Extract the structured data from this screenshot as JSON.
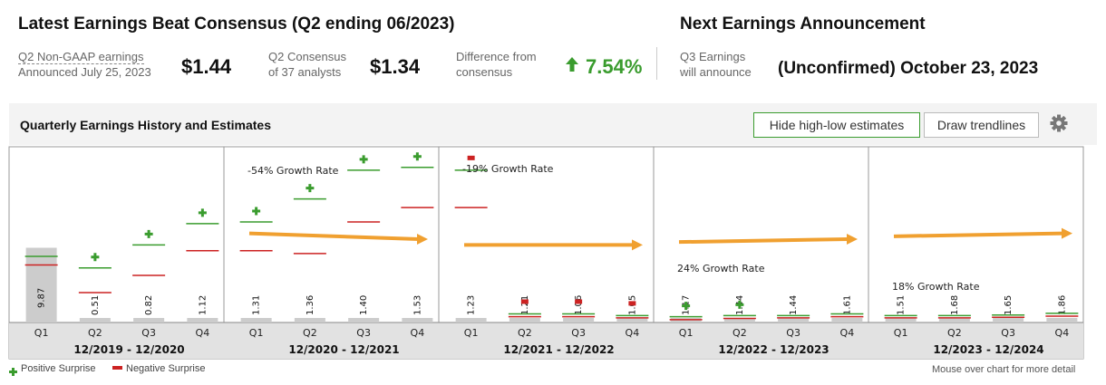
{
  "header": {
    "latest_title": "Latest Earnings Beat Consensus (Q2 ending 06/2023)",
    "next_title": "Next Earnings Announcement",
    "q2_label_line1": "Q2 Non-GAAP earnings",
    "q2_label_line2": "Announced July 25, 2023",
    "q2_value": "$1.44",
    "consensus_label_line1": "Q2 Consensus",
    "consensus_label_line2": "of 37 analysts",
    "consensus_value": "$1.34",
    "diff_label_line1": "Difference from",
    "diff_label_line2": "consensus",
    "diff_value": "7.54%",
    "q3_label_line1": "Q3 Earnings",
    "q3_label_line2": "will announce",
    "q3_date": "(Unconfirmed) October 23, 2023"
  },
  "panel": {
    "title": "Quarterly Earnings History and Estimates",
    "hide_button": "Hide high-low estimates",
    "trend_button": "Draw trendlines"
  },
  "legend": {
    "positive": "Positive Surprise",
    "negative": "Negative Surprise",
    "note": "Mouse over chart for more detail"
  },
  "colors": {
    "positive": "#3a9c2e",
    "negative": "#cc2222",
    "high_estimate": "#3a9c2e",
    "low_estimate": "#cc2222",
    "trend": "#f0a030",
    "bar": "#cccccc"
  },
  "chart_data": {
    "type": "bar",
    "periods": [
      {
        "label": "12/2019 - 12/2020",
        "growth_label": "",
        "quarters": [
          {
            "q": "Q1",
            "value": 9.87,
            "label": "9.87",
            "high": 1.15,
            "low": 1.0,
            "surprise": "none"
          },
          {
            "q": "Q2",
            "value": 0.51,
            "label": "0.51",
            "high": 0.95,
            "low": 0.52,
            "surprise": "positive"
          },
          {
            "q": "Q3",
            "value": 0.82,
            "label": "0.82",
            "high": 1.35,
            "low": 0.82,
            "surprise": "positive"
          },
          {
            "q": "Q4",
            "value": 1.12,
            "label": "1.12",
            "high": 1.72,
            "low": 1.25,
            "surprise": "positive"
          }
        ]
      },
      {
        "label": "12/2020 - 12/2021",
        "growth_label": "-54% Growth Rate",
        "trend": [
          1.55,
          1.45
        ],
        "quarters": [
          {
            "q": "Q1",
            "value": 1.31,
            "label": "1.31",
            "high": 1.75,
            "low": 1.25,
            "surprise": "positive"
          },
          {
            "q": "Q2",
            "value": 1.36,
            "label": "1.36",
            "high": 2.15,
            "low": 1.2,
            "surprise": "positive"
          },
          {
            "q": "Q3",
            "value": 1.4,
            "label": "1.40",
            "high": 2.65,
            "low": 1.75,
            "surprise": "positive"
          },
          {
            "q": "Q4",
            "value": 1.53,
            "label": "1.53",
            "high": 2.7,
            "low": 2.0,
            "surprise": "positive"
          }
        ]
      },
      {
        "label": "12/2021 - 12/2022",
        "growth_label": "-19% Growth Rate",
        "trend": [
          1.35,
          1.35
        ],
        "quarters": [
          {
            "q": "Q1",
            "value": 1.23,
            "label": "1.23",
            "high": 2.65,
            "low": 2.0,
            "surprise": "negative"
          },
          {
            "q": "Q2",
            "value": 1.21,
            "label": "1.21",
            "high": 0.15,
            "low": 0.1,
            "surprise": "negative"
          },
          {
            "q": "Q3",
            "value": 1.06,
            "label": "1.06",
            "high": 0.15,
            "low": 0.1,
            "surprise": "negative"
          },
          {
            "q": "Q4",
            "value": 1.05,
            "label": "1.05",
            "high": 0.12,
            "low": 0.08,
            "surprise": "negative"
          }
        ]
      },
      {
        "label": "12/2022 - 12/2023",
        "growth_label": "24% Growth Rate",
        "trend": [
          1.4,
          1.45
        ],
        "quarters": [
          {
            "q": "Q1",
            "value": 1.17,
            "label": "1.17",
            "high": 0.1,
            "low": 0.05,
            "surprise": "positive"
          },
          {
            "q": "Q2",
            "value": 1.44,
            "label": "1.44",
            "high": 0.12,
            "low": 0.07,
            "surprise": "positive"
          },
          {
            "q": "Q3",
            "value": 1.44,
            "label": "1.44",
            "high": 0.12,
            "low": 0.08,
            "surprise": "none"
          },
          {
            "q": "Q4",
            "value": 1.61,
            "label": "1.61",
            "high": 0.15,
            "low": 0.1,
            "surprise": "none"
          }
        ]
      },
      {
        "label": "12/2023 - 12/2024",
        "growth_label": "18% Growth Rate",
        "trend": [
          1.5,
          1.55
        ],
        "quarters": [
          {
            "q": "Q1",
            "value": 1.51,
            "label": "1.51",
            "high": 0.12,
            "low": 0.08,
            "surprise": "none"
          },
          {
            "q": "Q2",
            "value": 1.68,
            "label": "1.68",
            "high": 0.12,
            "low": 0.08,
            "surprise": "none"
          },
          {
            "q": "Q3",
            "value": 1.65,
            "label": "1.65",
            "high": 0.13,
            "low": 0.09,
            "surprise": "none"
          },
          {
            "q": "Q4",
            "value": 1.86,
            "label": "1.86",
            "high": 0.16,
            "low": 0.11,
            "surprise": "none"
          }
        ]
      }
    ]
  }
}
